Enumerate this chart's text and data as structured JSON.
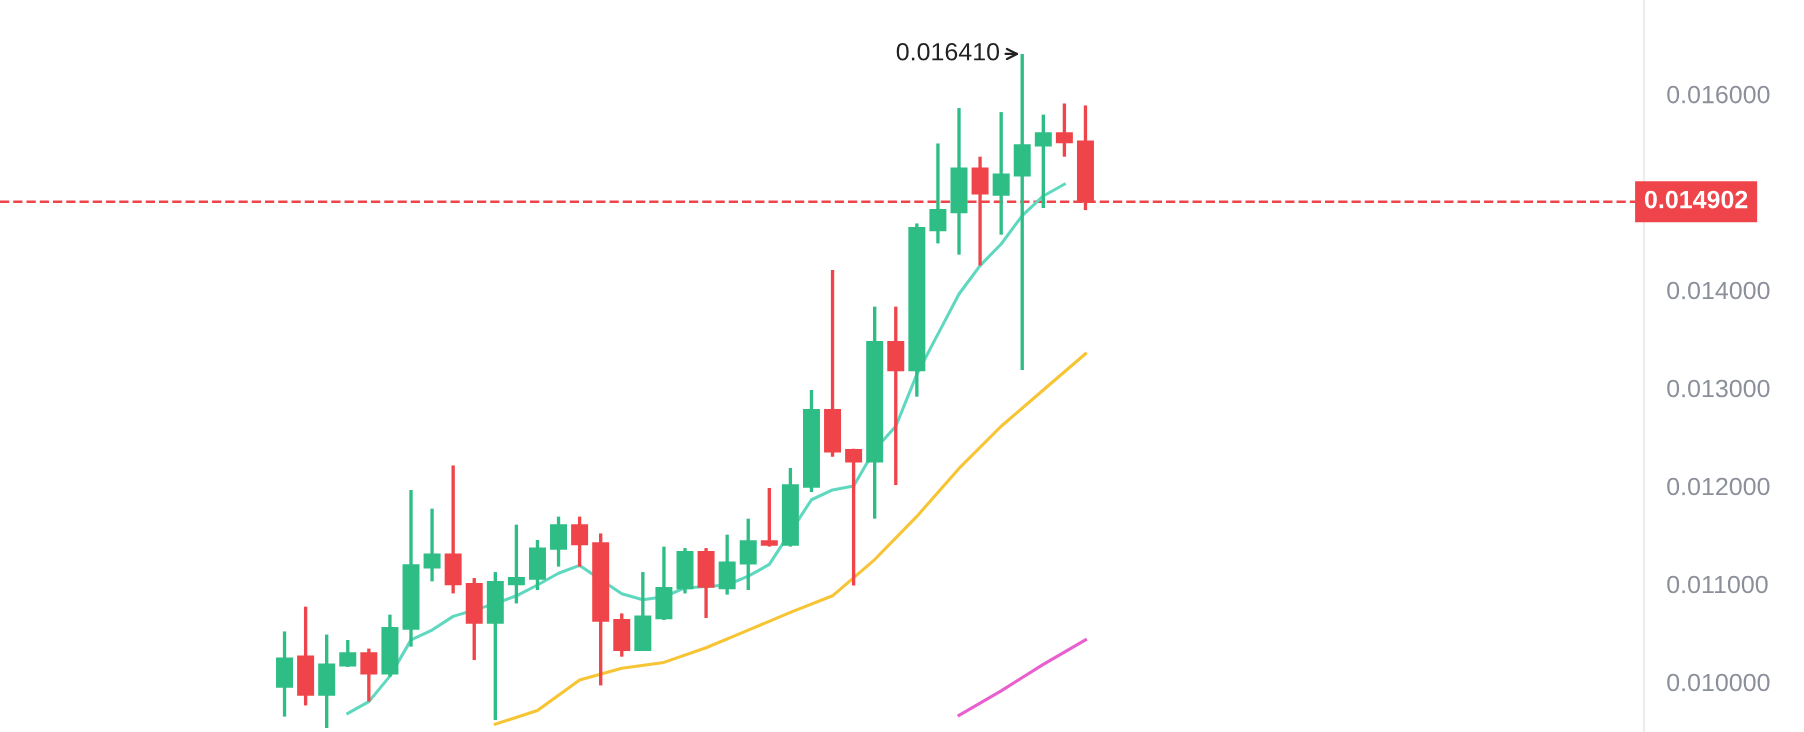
{
  "chart_data": {
    "type": "candlestick",
    "categories": [
      null,
      null,
      null,
      null,
      null,
      null,
      null,
      null,
      null,
      null,
      null,
      null,
      null,
      null,
      null,
      null,
      null,
      null,
      null,
      null,
      null,
      null,
      null,
      null,
      null,
      null,
      null,
      null,
      null,
      null,
      null,
      null,
      null,
      null,
      null,
      null,
      null,
      null,
      null,
      null,
      null,
      null,
      null,
      null,
      null,
      null,
      null,
      null,
      null,
      null,
      null,
      null,
      null,
      null,
      null,
      null,
      null,
      null,
      null,
      null,
      null,
      null,
      null,
      null,
      null,
      null,
      null,
      null,
      null,
      null,
      null,
      null,
      null,
      null,
      null,
      null,
      null,
      null
    ],
    "ohlc": [
      null,
      null,
      null,
      null,
      null,
      null,
      null,
      null,
      null,
      null,
      null,
      null,
      null,
      [
        0.009953,
        0.010516,
        0.009647,
        0.010239
      ],
      [
        0.010259,
        0.010769,
        0.009761,
        0.009871
      ],
      [
        0.009871,
        0.010484,
        0.009531,
        0.010178
      ],
      [
        0.010169,
        0.010429,
        0.010153,
        0.010292
      ],
      [
        0.010292,
        0.010341,
        0.009802,
        0.010088
      ],
      [
        0.010088,
        0.010688,
        0.010055,
        0.010551
      ],
      [
        0.010545,
        0.011959,
        0.010361,
        0.01119
      ],
      [
        0.011169,
        0.011769,
        0.011027,
        0.0113
      ],
      [
        0.0113,
        0.01221,
        0.010904,
        0.011
      ],
      [
        0.011,
        0.011061,
        0.010224,
        0.010606
      ],
      [
        0.010606,
        0.011122,
        0.009612,
        0.01102
      ],
      [
        0.011,
        0.011606,
        0.010802,
        0.011061
      ],
      [
        0.011055,
        0.011449,
        0.010939,
        0.011361
      ],
      [
        0.011361,
        0.011688,
        0.011178,
        0.011598
      ],
      [
        0.011598,
        0.011688,
        0.011178,
        0.011408
      ],
      [
        0.011414,
        0.011516,
        0.009965,
        0.010627
      ],
      [
        0.010633,
        0.0107,
        0.010259,
        0.010327
      ],
      [
        0.010327,
        0.011122,
        0.01032,
        0.010667
      ],
      [
        0.010653,
        0.011382,
        0.010633,
        0.010959
      ],
      [
        0.010959,
        0.011367,
        0.010904,
        0.011327
      ],
      [
        0.011327,
        0.011367,
        0.010653,
        0.010973
      ],
      [
        0.010959,
        0.011504,
        0.010892,
        0.011218
      ],
      [
        0.01121,
        0.011667,
        0.010939,
        0.011435
      ],
      [
        0.011435,
        0.01198,
        0.011382,
        0.011402
      ],
      [
        0.011402,
        0.012184,
        0.011382,
        0.012006
      ],
      [
        0.011994,
        0.01298,
        0.011939,
        0.012776
      ],
      [
        0.012776,
        0.014204,
        0.0123,
        0.012353
      ],
      [
        0.012367,
        0.01238,
        0.010986,
        0.012251
      ],
      [
        0.012251,
        0.013831,
        0.011667,
        0.013469
      ],
      [
        0.013469,
        0.013831,
        0.01201,
        0.013184
      ],
      [
        0.013184,
        0.01468,
        0.012912,
        0.014633
      ],
      [
        0.014612,
        0.015496,
        0.014476,
        0.014816
      ],
      [
        0.014796,
        0.015857,
        0.014361,
        0.015239
      ],
      [
        0.015239,
        0.015361,
        0.014251,
        0.014986
      ],
      [
        0.014973,
        0.015816,
        0.014565,
        0.015178
      ],
      [
        0.015169,
        0.01641,
        0.013184,
        0.015476
      ],
      [
        0.015476,
        0.01579,
        0.014837,
        0.015598
      ],
      [
        0.015598,
        0.015904,
        0.015361,
        0.01551
      ],
      [
        0.015516,
        0.015884,
        0.014816,
        0.014902
      ],
      null,
      null,
      null,
      null,
      null,
      null,
      null,
      null,
      null,
      null,
      null,
      null,
      null,
      null,
      null,
      null,
      null,
      null,
      null,
      null,
      null,
      null,
      null,
      null,
      null,
      null
    ],
    "colors": [
      null,
      null,
      null,
      null,
      null,
      null,
      null,
      null,
      null,
      null,
      null,
      null,
      null,
      "#2ebd85",
      "#ef454a",
      "#2ebd85",
      "#2ebd85",
      "#ef454a",
      "#2ebd85",
      "#2ebd85",
      "#2ebd85",
      "#ef454a",
      "#ef454a",
      "#2ebd85",
      "#2ebd85",
      "#2ebd85",
      "#2ebd85",
      "#ef454a",
      "#ef454a",
      "#ef454a",
      "#2ebd85",
      "#2ebd85",
      "#2ebd85",
      "#ef454a",
      "#2ebd85",
      "#2ebd85",
      "#ef454a",
      "#2ebd85",
      "#2ebd85",
      "#ef454a",
      "#ef454a",
      "#2ebd85",
      "#ef454a",
      "#2ebd85",
      "#2ebd85",
      "#2ebd85",
      "#ef454a",
      "#2ebd85",
      "#2ebd85",
      "#2ebd85",
      "#ef454a",
      "#ef454a",
      null,
      null,
      null,
      null,
      null,
      null,
      null,
      null,
      null,
      null,
      null,
      null,
      null,
      null,
      null,
      null,
      null,
      null,
      null,
      null,
      null,
      null,
      null,
      null,
      null,
      null
    ],
    "series": [
      {
        "type": "line",
        "color": "#5fd8bf",
        "values": [
          null,
          null,
          null,
          null,
          null,
          null,
          null,
          null,
          null,
          null,
          null,
          null,
          null,
          null,
          null,
          null,
          0.00968,
          0.0098,
          0.01006,
          0.01043,
          0.01053,
          0.01067,
          null,
          0.0108,
          0.01088,
          0.01099,
          0.01111,
          0.01119,
          null,
          0.0109,
          0.01084,
          0.01087,
          0.01096,
          null,
          0.01099,
          0.01108,
          0.0112,
          null,
          0.01186,
          0.01196,
          0.012,
          0.01237,
          0.01261,
          0.01314,
          0.01355,
          0.01396,
          0.01425,
          0.01447,
          0.01476,
          0.01496,
          0.01508,
          null,
          null,
          null,
          null,
          null,
          null,
          null,
          null,
          null,
          null,
          null,
          null,
          null,
          null,
          null,
          null,
          null,
          null,
          null,
          null,
          null,
          null,
          null,
          null,
          null,
          null,
          null
        ]
      },
      {
        "type": "line",
        "color": "#f7c433",
        "values": [
          null,
          null,
          null,
          null,
          null,
          null,
          null,
          null,
          null,
          null,
          null,
          null,
          null,
          null,
          null,
          null,
          null,
          null,
          null,
          null,
          null,
          null,
          null,
          0.00957,
          null,
          0.00971,
          null,
          0.01002,
          null,
          0.01014,
          null,
          0.0102,
          null,
          0.01035,
          null,
          0.01053,
          null,
          0.01071,
          null,
          0.01088,
          null,
          0.01125,
          null,
          0.01169,
          null,
          0.01218,
          null,
          0.01261,
          null,
          0.01298,
          null,
          0.01335,
          null,
          null,
          null,
          null,
          null,
          null,
          null,
          null,
          null,
          null,
          null,
          null,
          null,
          null,
          null,
          null,
          null,
          null,
          null,
          null,
          null,
          null,
          null,
          null,
          null,
          null
        ]
      },
      {
        "type": "line",
        "color": "#e85fd0",
        "values": [
          null,
          null,
          null,
          null,
          null,
          null,
          null,
          null,
          null,
          null,
          null,
          null,
          null,
          null,
          null,
          null,
          null,
          null,
          null,
          null,
          null,
          null,
          null,
          null,
          null,
          null,
          null,
          null,
          null,
          null,
          null,
          null,
          null,
          null,
          null,
          null,
          null,
          null,
          null,
          null,
          null,
          null,
          null,
          null,
          null,
          0.00966,
          null,
          0.00991,
          null,
          0.01018,
          null,
          0.01043,
          null,
          null,
          null,
          null,
          null,
          null,
          null,
          null,
          null,
          null,
          null,
          null,
          null,
          null,
          null,
          null,
          null,
          null,
          null,
          null,
          null,
          null,
          null,
          null,
          null,
          null
        ]
      }
    ],
    "ylim": [
      0.00949,
      0.01696
    ],
    "yticks": [
      {
        "value": 0.01,
        "label": "0.010000"
      },
      {
        "value": 0.011,
        "label": "0.011000"
      },
      {
        "value": 0.012,
        "label": "0.012000"
      },
      {
        "value": 0.013,
        "label": "0.013000"
      },
      {
        "value": 0.014,
        "label": "0.014000"
      },
      {
        "value": 0.016,
        "label": "0.016000"
      }
    ],
    "tick_labels": "y",
    "ref_lines": [
      {
        "axis": "y",
        "value": 0.014902,
        "label": "0.014902",
        "color": "#ef454a",
        "line_style": "dashed"
      }
    ],
    "annotations": [
      "0.016410"
    ]
  }
}
